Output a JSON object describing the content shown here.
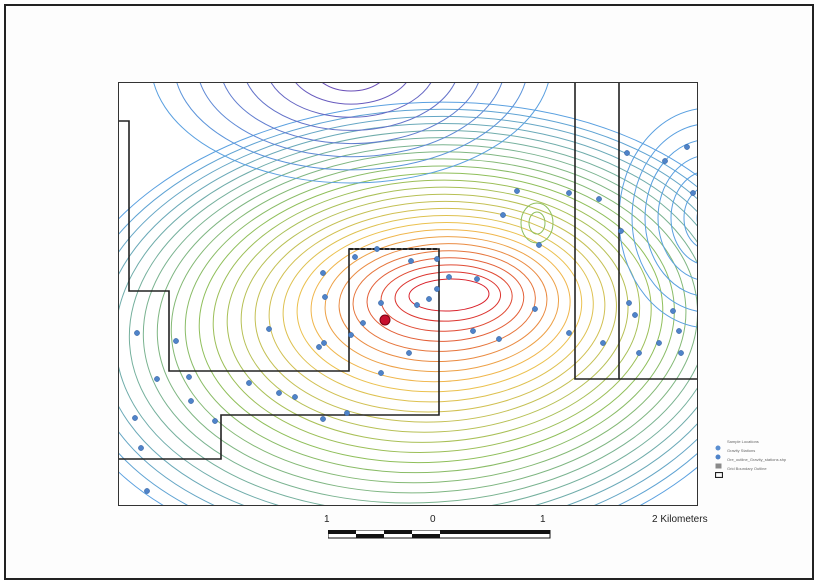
{
  "legend": {
    "items": [
      {
        "label": "Sample Locations",
        "symbol": "blue-dot-icon",
        "color": "#5b8fd1"
      },
      {
        "label": "Gravity Stations",
        "symbol": "blue-dot-icon",
        "color": "#4f83c9"
      },
      {
        "label": "Ore_outline_Gravity_stations.shp",
        "symbol": "gray-square-icon",
        "color": "#8a8a8a"
      },
      {
        "label": "Grid Boundary Outline",
        "symbol": "outline-rect-icon",
        "color": "#222222"
      }
    ]
  },
  "scale": {
    "labels": [
      "1",
      "0",
      "1",
      "2 Kilometers"
    ]
  },
  "colors": {
    "contour_cool": "#5aa0e0",
    "contour_mid": "#8fbf5a",
    "contour_warm": "#f2c14e",
    "contour_hot": "#d9202a",
    "station": "#4f83c9",
    "target": "#c8102e"
  }
}
